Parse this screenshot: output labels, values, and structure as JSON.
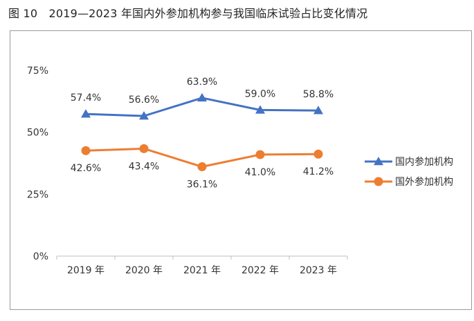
{
  "figure_title": "图 10　2019—2023 年国内外参加机构参与我国临床试验占比变化情况",
  "chart_data": {
    "type": "line",
    "title": "",
    "xlabel": "",
    "ylabel": "",
    "categories": [
      "2019 年",
      "2020 年",
      "2021 年",
      "2022 年",
      "2023 年"
    ],
    "ylim": [
      0,
      75
    ],
    "yticks": [
      0,
      25,
      50,
      75
    ],
    "ytick_labels": [
      "0%",
      "25%",
      "50%",
      "75%"
    ],
    "grid": false,
    "legend_position": "right",
    "series": [
      {
        "name": "国内参加机构",
        "values": [
          57.4,
          56.6,
          63.9,
          59.0,
          58.8
        ],
        "labels": [
          "57.4%",
          "56.6%",
          "63.9%",
          "59.0%",
          "58.8%"
        ],
        "color": "#4472c4",
        "marker": "triangle",
        "label_position": "above"
      },
      {
        "name": "国外参加机构",
        "values": [
          42.6,
          43.4,
          36.1,
          41.0,
          41.2
        ],
        "labels": [
          "42.6%",
          "43.4%",
          "36.1%",
          "41.0%",
          "41.2%"
        ],
        "color": "#ed7d31",
        "marker": "circle",
        "label_position": "below"
      }
    ]
  }
}
